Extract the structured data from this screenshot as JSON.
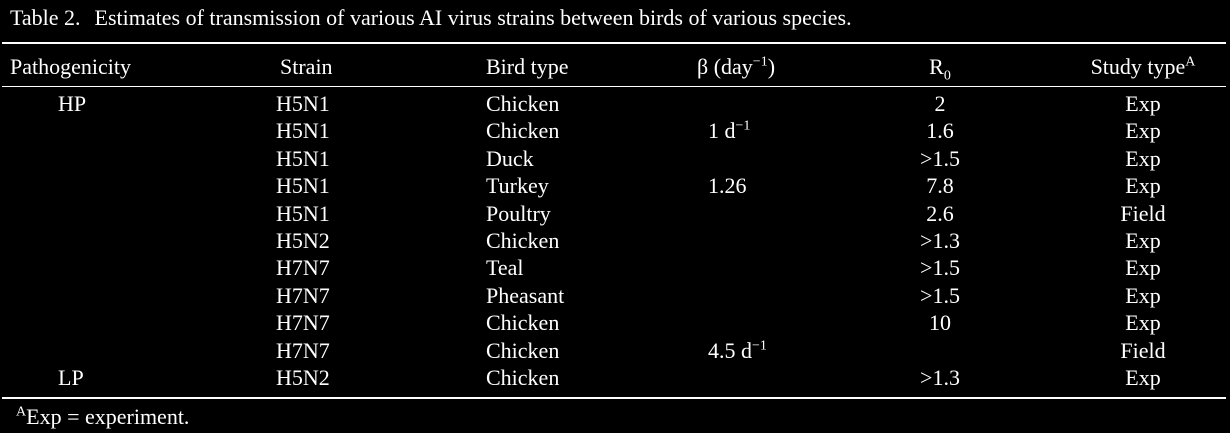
{
  "caption": {
    "label": "Table 2.",
    "text": "Estimates of transmission of various AI virus strains between birds of various species."
  },
  "headers": {
    "pathogenicity": "Pathogenicity",
    "strain": "Strain",
    "bird_type": "Bird type",
    "beta": "β (day",
    "beta_sup": "−1",
    "beta_close": ")",
    "r0": "R",
    "r0_sub": "0",
    "study_type": "Study type",
    "study_type_sup": "A"
  },
  "rows": [
    {
      "pathogenicity": "HP",
      "strain": "H5N1",
      "bird_type": "Chicken",
      "beta": "",
      "beta_sup": "",
      "r0": "2",
      "study_type": "Exp"
    },
    {
      "pathogenicity": "",
      "strain": "H5N1",
      "bird_type": "Chicken",
      "beta": "1 d",
      "beta_sup": "−1",
      "r0": "1.6",
      "study_type": "Exp"
    },
    {
      "pathogenicity": "",
      "strain": "H5N1",
      "bird_type": "Duck",
      "beta": "",
      "beta_sup": "",
      "r0": ">1.5",
      "study_type": "Exp"
    },
    {
      "pathogenicity": "",
      "strain": "H5N1",
      "bird_type": "Turkey",
      "beta": "1.26",
      "beta_sup": "",
      "r0": "7.8",
      "study_type": "Exp"
    },
    {
      "pathogenicity": "",
      "strain": "H5N1",
      "bird_type": "Poultry",
      "beta": "",
      "beta_sup": "",
      "r0": "2.6",
      "study_type": "Field"
    },
    {
      "pathogenicity": "",
      "strain": "H5N2",
      "bird_type": "Chicken",
      "beta": "",
      "beta_sup": "",
      "r0": ">1.3",
      "study_type": "Exp"
    },
    {
      "pathogenicity": "",
      "strain": "H7N7",
      "bird_type": "Teal",
      "beta": "",
      "beta_sup": "",
      "r0": ">1.5",
      "study_type": "Exp"
    },
    {
      "pathogenicity": "",
      "strain": "H7N7",
      "bird_type": "Pheasant",
      "beta": "",
      "beta_sup": "",
      "r0": ">1.5",
      "study_type": "Exp"
    },
    {
      "pathogenicity": "",
      "strain": "H7N7",
      "bird_type": "Chicken",
      "beta": "",
      "beta_sup": "",
      "r0": "10",
      "study_type": "Exp"
    },
    {
      "pathogenicity": "",
      "strain": "H7N7",
      "bird_type": "Chicken",
      "beta": "4.5 d",
      "beta_sup": "−1",
      "r0": "",
      "study_type": "Field"
    },
    {
      "pathogenicity": "LP",
      "strain": "H5N2",
      "bird_type": "Chicken",
      "beta": "",
      "beta_sup": "",
      "r0": ">1.3",
      "study_type": "Exp"
    }
  ],
  "footnote": {
    "sup": "A",
    "text": "Exp = experiment."
  }
}
